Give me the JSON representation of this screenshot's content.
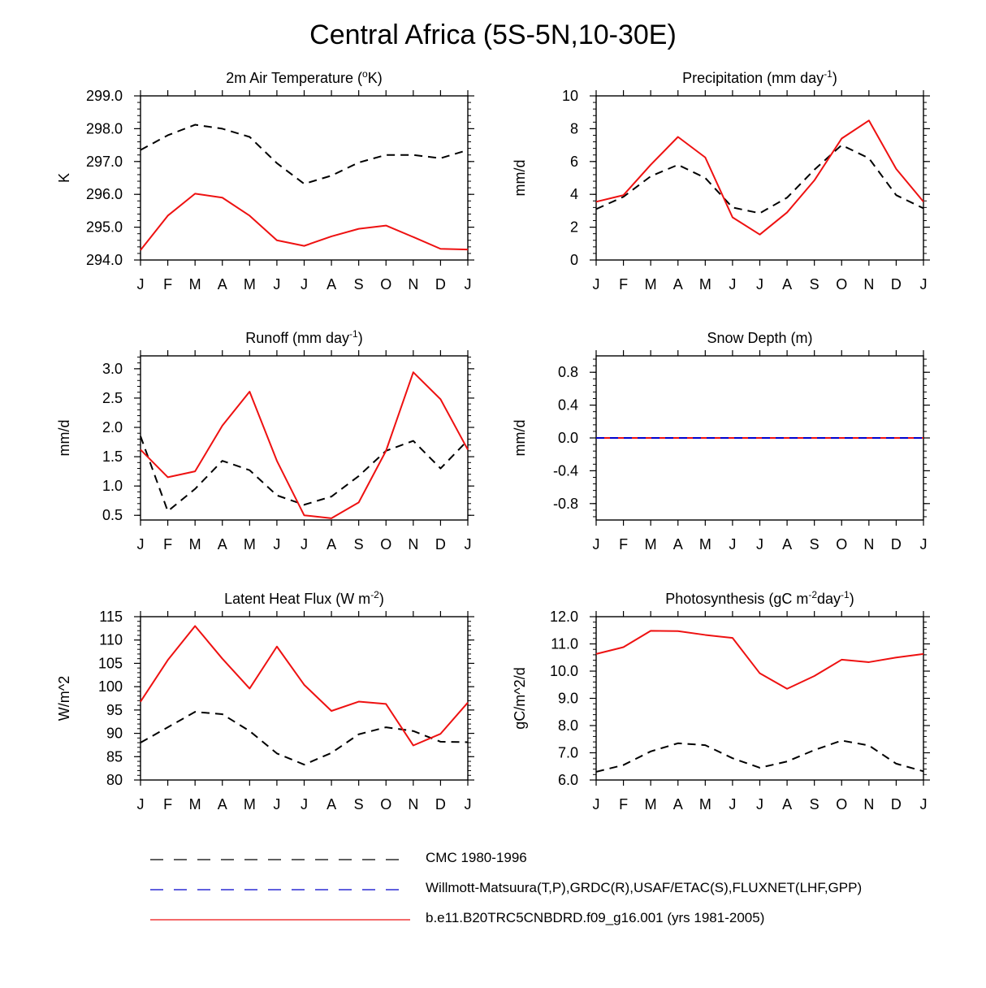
{
  "title": "Central Africa (5S-5N,10-30E)",
  "months": [
    "J",
    "F",
    "M",
    "A",
    "M",
    "J",
    "J",
    "A",
    "S",
    "O",
    "N",
    "D",
    "J"
  ],
  "colors": {
    "obs": "#000000",
    "obs2": "#0000cc",
    "model": "#ee1111"
  },
  "legend": [
    {
      "label": "CMC 1980-1996",
      "style": "dashed",
      "color": "#000000"
    },
    {
      "label": "Willmott-Matsuura(T,P),GRDC(R),USAF/ETAC(S),FLUXNET(LHF,GPP)",
      "style": "dashed",
      "color": "#0000cc"
    },
    {
      "label": "b.e11.B20TRC5CNBDRD.f09_g16.001 (yrs 1981-2005)",
      "style": "solid",
      "color": "#ee1111"
    }
  ],
  "chart_data": [
    {
      "type": "line",
      "title": "2m Air Temperature (°K)",
      "ylabel": "K",
      "ylim": [
        294.0,
        299.0
      ],
      "yticks": [
        294.0,
        295.0,
        296.0,
        297.0,
        298.0,
        299.0
      ],
      "ytick_labels": [
        "294.0",
        "295.0",
        "296.0",
        "297.0",
        "298.0",
        "299.0"
      ],
      "categories": [
        "J",
        "F",
        "M",
        "A",
        "M",
        "J",
        "J",
        "A",
        "S",
        "O",
        "N",
        "D",
        "J"
      ],
      "series": [
        {
          "name": "CMC 1980-1996",
          "style": "dashed",
          "values": [
            297.35,
            297.8,
            298.12,
            298.0,
            297.75,
            296.95,
            296.32,
            296.57,
            296.97,
            297.2,
            297.2,
            297.1,
            297.35
          ]
        },
        {
          "name": "b.e11.B20TRC5CNBDRD.f09_g16.001 (yrs 1981-2005)",
          "style": "solid",
          "values": [
            294.3,
            295.35,
            296.02,
            295.9,
            295.35,
            294.6,
            294.43,
            294.72,
            294.95,
            295.05,
            294.7,
            294.34,
            294.32
          ]
        }
      ]
    },
    {
      "type": "line",
      "title": "Precipitation (mm day-1)",
      "ylabel": "mm/d",
      "ylim": [
        0,
        10
      ],
      "yticks": [
        0,
        2,
        4,
        6,
        8,
        10
      ],
      "ytick_labels": [
        "0",
        "2",
        "4",
        "6",
        "8",
        "10"
      ],
      "categories": [
        "J",
        "F",
        "M",
        "A",
        "M",
        "J",
        "J",
        "A",
        "S",
        "O",
        "N",
        "D",
        "J"
      ],
      "series": [
        {
          "name": "CMC 1980-1996",
          "style": "dashed",
          "values": [
            3.1,
            3.85,
            5.1,
            5.8,
            5.0,
            3.2,
            2.85,
            3.8,
            5.5,
            7.0,
            6.2,
            3.95,
            3.15
          ]
        },
        {
          "name": "b.e11.B20TRC5CNBDRD.f09_g16.001 (yrs 1981-2005)",
          "style": "solid",
          "values": [
            3.55,
            3.95,
            5.8,
            7.5,
            6.25,
            2.6,
            1.55,
            2.9,
            4.85,
            7.4,
            8.5,
            5.55,
            3.55
          ]
        }
      ]
    },
    {
      "type": "line",
      "title": "Runoff (mm day-1)",
      "ylabel": "mm/d",
      "ylim": [
        0.42,
        3.22
      ],
      "yticks": [
        0.5,
        1.0,
        1.5,
        2.0,
        2.5,
        3.0
      ],
      "ytick_labels": [
        "0.5",
        "1.0",
        "1.5",
        "2.0",
        "2.5",
        "3.0"
      ],
      "categories": [
        "J",
        "F",
        "M",
        "A",
        "M",
        "J",
        "J",
        "A",
        "S",
        "O",
        "N",
        "D",
        "J"
      ],
      "series": [
        {
          "name": "CMC 1980-1996",
          "style": "dashed",
          "values": [
            1.85,
            0.57,
            0.95,
            1.43,
            1.27,
            0.84,
            0.68,
            0.82,
            1.17,
            1.6,
            1.77,
            1.3,
            1.78
          ]
        },
        {
          "name": "b.e11.B20TRC5CNBDRD.f09_g16.001 (yrs 1981-2005)",
          "style": "solid",
          "values": [
            1.62,
            1.15,
            1.25,
            2.03,
            2.61,
            1.43,
            0.5,
            0.45,
            0.72,
            1.6,
            2.94,
            2.48,
            1.62
          ]
        }
      ]
    },
    {
      "type": "line",
      "title": "Snow Depth (m)",
      "ylabel": "mm/d",
      "ylim": [
        -1.0,
        1.0
      ],
      "yticks": [
        -0.8,
        -0.4,
        0.0,
        0.4,
        0.8
      ],
      "ytick_labels": [
        "-0.8",
        "-0.4",
        "0.0",
        "0.4",
        "0.8"
      ],
      "categories": [
        "J",
        "F",
        "M",
        "A",
        "M",
        "J",
        "J",
        "A",
        "S",
        "O",
        "N",
        "D",
        "J"
      ],
      "series": [
        {
          "name": "b.e11.B20TRC5CNBDRD.f09_g16.001 (yrs 1981-2005)",
          "style": "solid",
          "values": [
            0,
            0,
            0,
            0,
            0,
            0,
            0,
            0,
            0,
            0,
            0,
            0,
            0
          ]
        },
        {
          "name": "Willmott-Matsuura(T,P),GRDC(R),USAF/ETAC(S),FLUXNET(LHF,GPP)",
          "style": "dashed",
          "values": [
            0,
            0,
            0,
            0,
            0,
            0,
            0,
            0,
            0,
            0,
            0,
            0,
            0
          ]
        }
      ]
    },
    {
      "type": "line",
      "title": "Latent Heat Flux (W m-2)",
      "ylabel": "W/m^2",
      "ylim": [
        80,
        115
      ],
      "yticks": [
        80,
        85,
        90,
        95,
        100,
        105,
        110,
        115
      ],
      "ytick_labels": [
        "80",
        "85",
        "90",
        "95",
        "100",
        "105",
        "110",
        "115"
      ],
      "categories": [
        "J",
        "F",
        "M",
        "A",
        "M",
        "J",
        "J",
        "A",
        "S",
        "O",
        "N",
        "D",
        "J"
      ],
      "series": [
        {
          "name": "CMC 1980-1996",
          "style": "dashed",
          "values": [
            88.0,
            91.3,
            94.6,
            94.1,
            90.5,
            85.7,
            83.3,
            85.8,
            89.8,
            91.3,
            90.5,
            88.2,
            88.1
          ]
        },
        {
          "name": "b.e11.B20TRC5CNBDRD.f09_g16.001 (yrs 1981-2005)",
          "style": "solid",
          "values": [
            96.8,
            105.7,
            113.0,
            106.0,
            99.6,
            108.6,
            100.4,
            94.8,
            96.8,
            96.3,
            87.4,
            89.9,
            96.6
          ]
        }
      ]
    },
    {
      "type": "line",
      "title": "Photosynthesis (gC m-2day-1)",
      "ylabel": "gC/m^2/d",
      "ylim": [
        6.0,
        12.0
      ],
      "yticks": [
        6.0,
        7.0,
        8.0,
        9.0,
        10.0,
        11.0,
        12.0
      ],
      "ytick_labels": [
        "6.0",
        "7.0",
        "8.0",
        "9.0",
        "10.0",
        "11.0",
        "12.0"
      ],
      "categories": [
        "J",
        "F",
        "M",
        "A",
        "M",
        "J",
        "J",
        "A",
        "S",
        "O",
        "N",
        "D",
        "J"
      ],
      "series": [
        {
          "name": "CMC 1980-1996",
          "style": "dashed",
          "values": [
            6.3,
            6.55,
            7.05,
            7.35,
            7.28,
            6.8,
            6.45,
            6.68,
            7.1,
            7.45,
            7.27,
            6.6,
            6.32
          ]
        },
        {
          "name": "b.e11.B20TRC5CNBDRD.f09_g16.001 (yrs 1981-2005)",
          "style": "solid",
          "values": [
            10.63,
            10.88,
            11.48,
            11.47,
            11.33,
            11.22,
            9.92,
            9.35,
            9.82,
            10.42,
            10.33,
            10.5,
            10.63
          ]
        }
      ]
    }
  ]
}
